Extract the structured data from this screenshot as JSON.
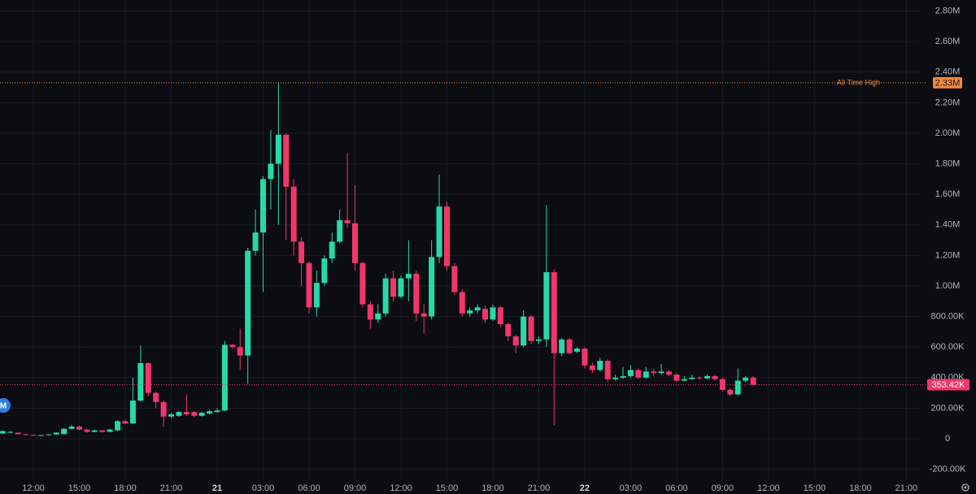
{
  "chart_data": {
    "type": "candlestick",
    "up_color": "#26d9a6",
    "down_color": "#f2366b",
    "grid": true,
    "xlim": [
      9.82,
      69.83
    ],
    "ylim": [
      -266000,
      2872000
    ],
    "xticks": [
      {
        "value": 12,
        "label": "12:00"
      },
      {
        "value": 15,
        "label": "15:00"
      },
      {
        "value": 18,
        "label": "18:00"
      },
      {
        "value": 21,
        "label": "21:00"
      },
      {
        "value": 24,
        "label": "21"
      },
      {
        "value": 27,
        "label": "03:00"
      },
      {
        "value": 30,
        "label": "06:00"
      },
      {
        "value": 33,
        "label": "09:00"
      },
      {
        "value": 36,
        "label": "12:00"
      },
      {
        "value": 39,
        "label": "15:00"
      },
      {
        "value": 42,
        "label": "18:00"
      },
      {
        "value": 45,
        "label": "21:00"
      },
      {
        "value": 48,
        "label": "22"
      },
      {
        "value": 51,
        "label": "03:00"
      },
      {
        "value": 54,
        "label": "06:00"
      },
      {
        "value": 57,
        "label": "09:00"
      },
      {
        "value": 60,
        "label": "12:00"
      },
      {
        "value": 63,
        "label": "15:00"
      },
      {
        "value": 66,
        "label": "18:00"
      },
      {
        "value": 69,
        "label": "21:00"
      }
    ],
    "day_ticks": [
      24,
      48
    ],
    "yticks": [
      {
        "value": -200000,
        "label": "-200.00K"
      },
      0,
      {
        "value": 200000,
        "label": "200.00K"
      },
      {
        "value": 400000,
        "label": "400.00K"
      },
      {
        "value": 600000,
        "label": "600.00K"
      },
      {
        "value": 800000,
        "label": "800.00K"
      },
      {
        "value": 1000000,
        "label": "1.00M"
      },
      {
        "value": 1200000,
        "label": "1.20M"
      },
      {
        "value": 1400000,
        "label": "1.40M"
      },
      {
        "value": 1600000,
        "label": "1.60M"
      },
      {
        "value": 1800000,
        "label": "1.80M"
      },
      {
        "value": 2000000,
        "label": "2.00M"
      },
      {
        "value": 2200000,
        "label": "2.20M"
      },
      {
        "value": 2400000,
        "label": "2.40M"
      },
      {
        "value": 2600000,
        "label": "2.60M"
      },
      {
        "value": 2800000,
        "label": "2.80M"
      }
    ],
    "all_time_high": {
      "name": "All Time High",
      "value": 2330000,
      "label": "2.33M",
      "color": "#f0883e"
    },
    "last_price": {
      "value": 353420,
      "label": "353.42K",
      "color": "#f2366b"
    },
    "marker_label": "M",
    "x": [
      10,
      10.5,
      11,
      11.5,
      12,
      12.5,
      13,
      13.5,
      14,
      14.5,
      15,
      15.5,
      16,
      16.5,
      17,
      17.5,
      18,
      18.5,
      19,
      19.5,
      20,
      20.5,
      21,
      21.5,
      22,
      22.5,
      23,
      23.5,
      24,
      24.5,
      25,
      25.5,
      26,
      26.5,
      27,
      27.5,
      28,
      28.5,
      29,
      29.5,
      30,
      30.5,
      31,
      31.5,
      32,
      32.5,
      33,
      33.5,
      34,
      34.5,
      35,
      35.5,
      36,
      36.5,
      37,
      37.5,
      38,
      38.5,
      39,
      39.5,
      40,
      40.5,
      41,
      41.5,
      42,
      42.5,
      43,
      43.5,
      44,
      44.5,
      45,
      45.5,
      46,
      46.5,
      47,
      47.5,
      48,
      48.5,
      49,
      49.5,
      50,
      50.5,
      51,
      51.5,
      52,
      52.5,
      53,
      53.5,
      54,
      54.5,
      55,
      55.5,
      56,
      56.5,
      57,
      57.5,
      58,
      58.5,
      59
    ],
    "open": [
      35000,
      40000,
      40000,
      30000,
      25000,
      22000,
      24000,
      28000,
      30000,
      65000,
      80000,
      60000,
      45000,
      55000,
      45000,
      55000,
      115000,
      100000,
      250000,
      495000,
      300000,
      240000,
      145000,
      150000,
      175000,
      175000,
      150000,
      165000,
      175000,
      185000,
      615000,
      600000,
      545000,
      1230000,
      1350000,
      1700000,
      1800000,
      1990000,
      1650000,
      1290000,
      1150000,
      860000,
      1020000,
      1180000,
      1290000,
      1430000,
      1410000,
      1150000,
      880000,
      780000,
      820000,
      1050000,
      930000,
      1050000,
      1080000,
      820000,
      800000,
      1190000,
      1520000,
      1130000,
      960000,
      820000,
      840000,
      850000,
      780000,
      860000,
      750000,
      670000,
      610000,
      800000,
      640000,
      650000,
      1090000,
      560000,
      650000,
      570000,
      590000,
      480000,
      450000,
      510000,
      390000,
      400000,
      410000,
      450000,
      400000,
      440000,
      430000,
      440000,
      420000,
      380000,
      390000,
      400000,
      395000,
      410000,
      390000,
      320000,
      290000,
      380000,
      400000
    ],
    "high": [
      55000,
      50000,
      42000,
      32000,
      27000,
      26000,
      30000,
      42000,
      70000,
      90000,
      85000,
      65000,
      58000,
      58000,
      65000,
      120000,
      125000,
      400000,
      610000,
      500000,
      310000,
      250000,
      170000,
      180000,
      290000,
      180000,
      175000,
      190000,
      200000,
      640000,
      620000,
      720000,
      1250000,
      1500000,
      1720000,
      2020000,
      2330000,
      2000000,
      1700000,
      1320000,
      1160000,
      1100000,
      1200000,
      1350000,
      1500000,
      1870000,
      1660000,
      1160000,
      900000,
      880000,
      1080000,
      1100000,
      1070000,
      1300000,
      1100000,
      880000,
      1300000,
      1730000,
      1550000,
      1150000,
      980000,
      860000,
      880000,
      870000,
      880000,
      870000,
      760000,
      680000,
      840000,
      810000,
      670000,
      1530000,
      1110000,
      660000,
      660000,
      600000,
      600000,
      500000,
      530000,
      520000,
      420000,
      470000,
      480000,
      460000,
      470000,
      460000,
      490000,
      450000,
      430000,
      410000,
      420000,
      410000,
      420000,
      415000,
      400000,
      330000,
      460000,
      410000,
      410000
    ],
    "low": [
      30000,
      35000,
      28000,
      22000,
      20000,
      20000,
      22000,
      26000,
      28000,
      60000,
      55000,
      40000,
      42000,
      40000,
      42000,
      50000,
      95000,
      95000,
      240000,
      280000,
      200000,
      80000,
      135000,
      145000,
      150000,
      140000,
      145000,
      160000,
      170000,
      180000,
      590000,
      450000,
      360000,
      1200000,
      960000,
      1500000,
      1400000,
      1300000,
      1200000,
      1000000,
      820000,
      800000,
      1000000,
      1150000,
      1280000,
      1380000,
      1100000,
      860000,
      720000,
      760000,
      800000,
      900000,
      920000,
      900000,
      770000,
      690000,
      780000,
      1150000,
      1100000,
      940000,
      800000,
      800000,
      820000,
      760000,
      770000,
      730000,
      640000,
      560000,
      600000,
      620000,
      620000,
      600000,
      90000,
      540000,
      550000,
      560000,
      460000,
      430000,
      440000,
      370000,
      380000,
      390000,
      400000,
      390000,
      395000,
      410000,
      420000,
      410000,
      370000,
      375000,
      385000,
      385000,
      390000,
      380000,
      310000,
      280000,
      285000,
      370000,
      350000
    ],
    "close": [
      50000,
      45000,
      30000,
      25000,
      22000,
      24000,
      28000,
      40000,
      65000,
      80000,
      60000,
      45000,
      55000,
      45000,
      60000,
      115000,
      100000,
      250000,
      495000,
      300000,
      240000,
      145000,
      160000,
      175000,
      160000,
      150000,
      170000,
      180000,
      185000,
      615000,
      600000,
      545000,
      1230000,
      1350000,
      1700000,
      1800000,
      1990000,
      1650000,
      1290000,
      1150000,
      860000,
      1020000,
      1180000,
      1290000,
      1430000,
      1410000,
      1150000,
      880000,
      780000,
      820000,
      1050000,
      930000,
      1050000,
      1080000,
      820000,
      800000,
      1190000,
      1520000,
      1130000,
      960000,
      820000,
      840000,
      860000,
      780000,
      860000,
      750000,
      670000,
      610000,
      800000,
      640000,
      650000,
      1090000,
      560000,
      650000,
      560000,
      590000,
      480000,
      450000,
      510000,
      390000,
      400000,
      410000,
      450000,
      400000,
      440000,
      430000,
      440000,
      420000,
      380000,
      390000,
      400000,
      395000,
      410000,
      390000,
      320000,
      290000,
      380000,
      400000,
      353420
    ]
  }
}
